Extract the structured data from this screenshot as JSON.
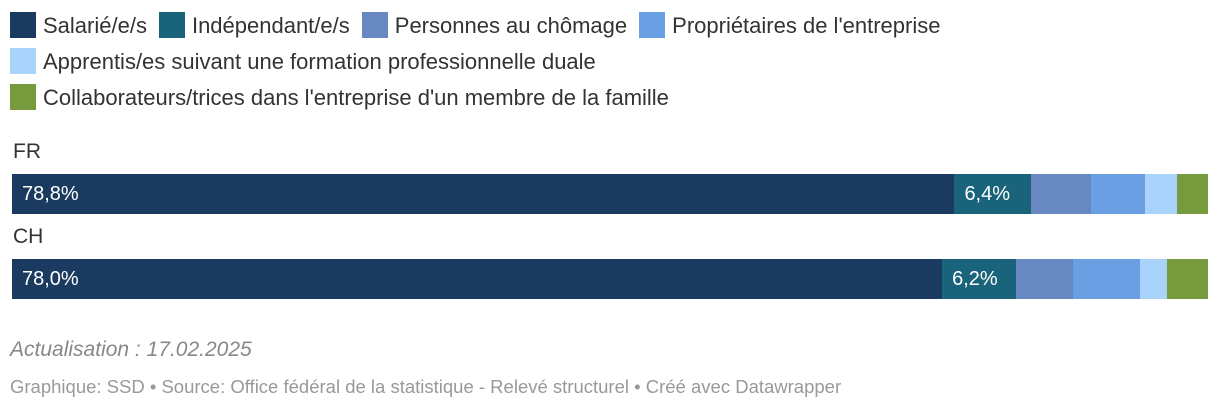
{
  "chart_data": {
    "type": "bar",
    "orientation": "horizontal",
    "stacked": true,
    "categories": [
      "FR",
      "CH"
    ],
    "series": [
      {
        "name": "Salarié/e/s",
        "color": "#1a3a5f",
        "values": [
          78.8,
          78.0
        ],
        "labels": [
          "78,8%",
          "78,0%"
        ]
      },
      {
        "name": "Indépendant/e/s",
        "color": "#19647a",
        "values": [
          6.4,
          6.2
        ],
        "labels": [
          "6,4%",
          "6,2%"
        ]
      },
      {
        "name": "Personnes au chômage",
        "color": "#6788c0",
        "values": [
          5.0,
          4.8
        ],
        "labels": [
          "",
          ""
        ]
      },
      {
        "name": "Propriétaires de l'entreprise",
        "color": "#6a9fe3",
        "values": [
          4.5,
          5.6
        ],
        "labels": [
          "",
          ""
        ]
      },
      {
        "name": "Apprentis/es suivant une formation professionnelle duale",
        "color": "#a9d3fa",
        "values": [
          2.7,
          2.3
        ],
        "labels": [
          "",
          ""
        ]
      },
      {
        "name": "Collaborateurs/trices dans l'entreprise d'un membre de la famille",
        "color": "#779a3c",
        "values": [
          2.6,
          3.4
        ],
        "labels": [
          "",
          ""
        ]
      }
    ],
    "xlim": [
      0,
      100
    ],
    "grid": false,
    "legend": "top"
  },
  "notes": {
    "update": "Actualisation : 17.02.2025",
    "footer": "Graphique: SSD • Source: Office fédéral de la statistique - Relevé structurel  • Créé avec Datawrapper"
  }
}
